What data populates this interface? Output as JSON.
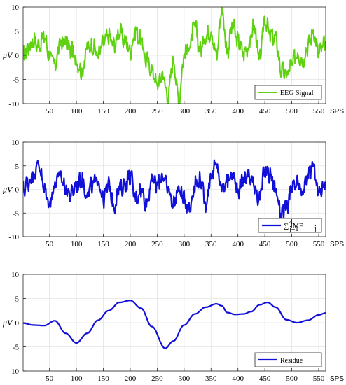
{
  "chart_data": [
    {
      "type": "line",
      "ylabel": "μV",
      "x_unit_label": "SPS",
      "xlim": [
        1,
        563
      ],
      "ylim": [
        -10,
        10
      ],
      "xticks": [
        50,
        100,
        150,
        200,
        250,
        300,
        350,
        400,
        450,
        500,
        550
      ],
      "yticks": [
        10,
        5,
        0,
        -5,
        -10
      ],
      "grid": true,
      "legend_position": "bottom-right",
      "series": [
        {
          "name": "EEG Signal",
          "color": "#5fd110",
          "x": [
            1,
            10,
            20,
            30,
            40,
            50,
            60,
            70,
            80,
            90,
            100,
            110,
            120,
            130,
            140,
            150,
            160,
            170,
            180,
            190,
            200,
            210,
            220,
            230,
            240,
            250,
            260,
            270,
            280,
            290,
            300,
            310,
            320,
            330,
            340,
            350,
            360,
            370,
            380,
            390,
            400,
            410,
            420,
            430,
            440,
            450,
            460,
            470,
            480,
            490,
            500,
            510,
            520,
            530,
            540,
            550,
            560
          ],
          "y": [
            0,
            1.5,
            3,
            2,
            4,
            0,
            -2,
            2.5,
            3,
            1,
            -1,
            -3.5,
            1.5,
            2,
            0,
            2.5,
            4,
            2,
            5,
            3,
            1,
            5,
            3,
            -1,
            -3,
            -6,
            -4,
            -8.5,
            -1,
            -9,
            0,
            2,
            6,
            1,
            4,
            5,
            0,
            9.5,
            1,
            6,
            3,
            0.5,
            2,
            6,
            -1,
            7.5,
            4,
            3.5,
            -3,
            -4,
            -2,
            0.5,
            -1,
            2,
            5,
            0.5,
            2
          ]
        }
      ]
    },
    {
      "type": "line",
      "ylabel": "μV",
      "x_unit_label": "SPS",
      "xlim": [
        1,
        563
      ],
      "ylim": [
        -10,
        10
      ],
      "xticks": [
        50,
        100,
        150,
        200,
        250,
        300,
        350,
        400,
        450,
        500,
        550
      ],
      "yticks": [
        10,
        5,
        0,
        -5,
        -10
      ],
      "grid": true,
      "legend_position": "bottom-right",
      "series": [
        {
          "name": "∑ IMF",
          "color": "#1010d8",
          "x": [
            1,
            10,
            20,
            30,
            40,
            50,
            60,
            70,
            80,
            90,
            100,
            110,
            120,
            130,
            140,
            150,
            160,
            170,
            180,
            190,
            200,
            210,
            220,
            230,
            240,
            250,
            260,
            270,
            280,
            290,
            300,
            310,
            320,
            330,
            340,
            350,
            360,
            370,
            380,
            390,
            400,
            410,
            420,
            430,
            440,
            450,
            460,
            470,
            480,
            490,
            500,
            510,
            520,
            530,
            540,
            550,
            560
          ],
          "y": [
            0,
            1.5,
            3,
            5.5,
            0,
            -3,
            1,
            3,
            0,
            -1,
            1,
            2,
            -1,
            1,
            2,
            -2,
            1,
            -3.5,
            0,
            1,
            3,
            -2,
            0,
            -3,
            2,
            1,
            3,
            0,
            -3,
            0,
            -2,
            -4,
            1,
            2,
            -3,
            3,
            5,
            0,
            2,
            3,
            0,
            2,
            3,
            1,
            -2,
            4,
            3,
            0,
            -5,
            -4,
            0,
            1,
            -1,
            3,
            5,
            -1,
            1
          ]
        }
      ]
    },
    {
      "type": "line",
      "ylabel": "μV",
      "x_unit_label": "SPS",
      "xlim": [
        1,
        563
      ],
      "ylim": [
        -10,
        10
      ],
      "xticks": [
        50,
        100,
        150,
        200,
        250,
        300,
        350,
        400,
        450,
        500,
        550
      ],
      "yticks": [
        10,
        5,
        0,
        -5,
        -10
      ],
      "grid": true,
      "legend_position": "bottom-right",
      "series": [
        {
          "name": "Residue",
          "color": "#1010d8",
          "x": [
            1,
            20,
            40,
            60,
            80,
            100,
            120,
            140,
            160,
            180,
            200,
            220,
            240,
            265,
            280,
            300,
            320,
            340,
            360,
            370,
            380,
            395,
            410,
            425,
            440,
            455,
            470,
            490,
            510,
            530,
            550,
            563
          ],
          "y": [
            -0.1,
            -0.5,
            -0.6,
            0.4,
            -2.2,
            -4.2,
            -2.2,
            0.5,
            2.5,
            4.2,
            4.6,
            3.0,
            -0.8,
            -5.3,
            -3.8,
            -0.5,
            1.8,
            3.2,
            3.9,
            3.5,
            2.1,
            1.7,
            1.8,
            2.3,
            3.7,
            4.2,
            3.2,
            0.6,
            0.0,
            0.5,
            1.6,
            2.0
          ]
        }
      ]
    }
  ]
}
